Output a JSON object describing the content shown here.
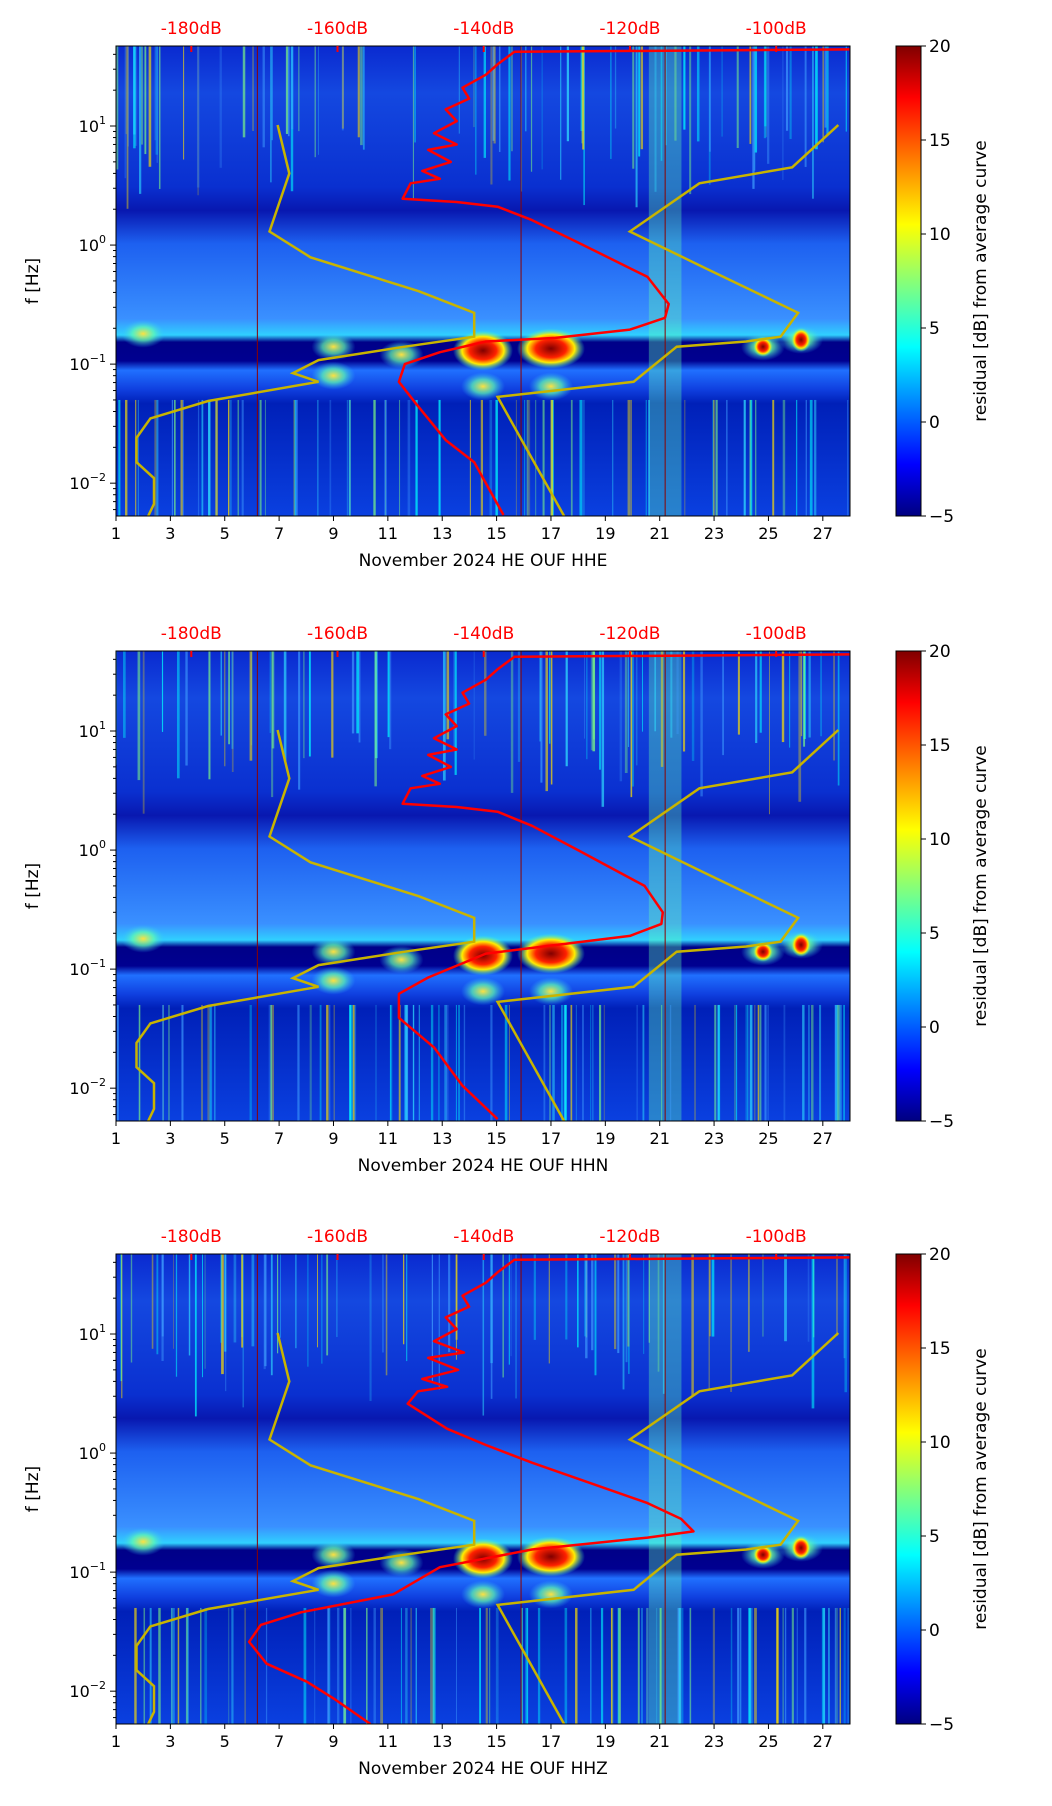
{
  "chart_data": [
    {
      "type": "heatmap",
      "xlabel": "November 2024 HE OUF  HHE",
      "ylabel": "f [Hz]",
      "x_ticks": [
        "1",
        "3",
        "5",
        "7",
        "9",
        "11",
        "13",
        "15",
        "17",
        "19",
        "21",
        "23",
        "25",
        "27"
      ],
      "xlim": [
        1,
        28
      ],
      "y_ticks": [
        {
          "value": 0.01,
          "base": "10",
          "exp": "−2"
        },
        {
          "value": 0.1,
          "base": "10",
          "exp": "−1"
        },
        {
          "value": 1,
          "base": "10",
          "exp": "0"
        },
        {
          "value": 10,
          "base": "10",
          "exp": "1"
        }
      ],
      "ylim": [
        0.0053,
        47
      ],
      "yscale": "log",
      "top_axis": {
        "ticks": [
          {
            "value": -180,
            "label": "-180dB"
          },
          {
            "value": -160,
            "label": "-160dB"
          },
          {
            "value": -140,
            "label": "-140dB"
          },
          {
            "value": -120,
            "label": "-120dB"
          },
          {
            "value": -100,
            "label": "-100dB"
          }
        ],
        "range": [
          -190.3,
          -89.9
        ],
        "color": "#ff0000"
      },
      "colorbar": {
        "label": "residual [dB] from average curve",
        "ticks": [
          "20",
          "15",
          "10",
          "5",
          "0",
          "−5"
        ],
        "range": [
          -5,
          20
        ],
        "colormap": "jet"
      },
      "red_curve_db_hz": [
        [
          -137.3,
          0.0054
        ],
        [
          -141.3,
          0.015
        ],
        [
          -145.2,
          0.023
        ],
        [
          -149.2,
          0.046
        ],
        [
          -151.6,
          0.071
        ],
        [
          -150.8,
          0.1
        ],
        [
          -146,
          0.126
        ],
        [
          -139.7,
          0.155
        ],
        [
          -130.2,
          0.166
        ],
        [
          -120,
          0.195
        ],
        [
          -115.2,
          0.245
        ],
        [
          -114.7,
          0.32
        ],
        [
          -117.6,
          0.54
        ],
        [
          -127.1,
          1.05
        ],
        [
          -133.4,
          1.62
        ],
        [
          -138.1,
          2.1
        ],
        [
          -143.7,
          2.3
        ],
        [
          -151.1,
          2.45
        ],
        [
          -150,
          3.3
        ],
        [
          -146,
          3.6
        ],
        [
          -148.4,
          4.2
        ],
        [
          -144.5,
          5.0
        ],
        [
          -147.6,
          6.3
        ],
        [
          -143.7,
          7.0
        ],
        [
          -146.8,
          8.7
        ],
        [
          -143.7,
          11
        ],
        [
          -145.2,
          13.8
        ],
        [
          -142,
          17
        ],
        [
          -142.9,
          21
        ],
        [
          -139.7,
          27
        ],
        [
          -138.1,
          33
        ],
        [
          -135.8,
          42
        ],
        [
          -89.9,
          44
        ]
      ]
    },
    {
      "type": "heatmap",
      "xlabel": "November 2024 HE OUF  HHN",
      "ylabel": "f [Hz]",
      "x_ticks": [
        "1",
        "3",
        "5",
        "7",
        "9",
        "11",
        "13",
        "15",
        "17",
        "19",
        "21",
        "23",
        "25",
        "27"
      ],
      "xlim": [
        1,
        28
      ],
      "y_ticks": [
        {
          "value": 0.01,
          "base": "10",
          "exp": "−2"
        },
        {
          "value": 0.1,
          "base": "10",
          "exp": "−1"
        },
        {
          "value": 1,
          "base": "10",
          "exp": "0"
        },
        {
          "value": 10,
          "base": "10",
          "exp": "1"
        }
      ],
      "ylim": [
        0.0053,
        47
      ],
      "yscale": "log",
      "top_axis": {
        "ticks": [
          {
            "value": -180,
            "label": "-180dB"
          },
          {
            "value": -160,
            "label": "-160dB"
          },
          {
            "value": -140,
            "label": "-140dB"
          },
          {
            "value": -120,
            "label": "-120dB"
          },
          {
            "value": -100,
            "label": "-100dB"
          }
        ],
        "range": [
          -190.3,
          -89.9
        ],
        "color": "#ff0000"
      },
      "colorbar": {
        "label": "residual [dB] from average curve",
        "ticks": [
          "20",
          "15",
          "10",
          "5",
          "0",
          "−5"
        ],
        "range": [
          -5,
          20
        ],
        "colormap": "jet"
      },
      "red_curve_db_hz": [
        [
          -138.1,
          0.0055
        ],
        [
          -142.9,
          0.0105
        ],
        [
          -146.8,
          0.022
        ],
        [
          -151.6,
          0.039
        ],
        [
          -151.6,
          0.062
        ],
        [
          -147.6,
          0.085
        ],
        [
          -139.7,
          0.135
        ],
        [
          -120,
          0.19
        ],
        [
          -115.7,
          0.24
        ],
        [
          -115.5,
          0.3
        ],
        [
          -118,
          0.5
        ],
        [
          -127.1,
          1.0
        ],
        [
          -133.4,
          1.6
        ],
        [
          -138.1,
          2.1
        ],
        [
          -143.7,
          2.3
        ],
        [
          -151.1,
          2.45
        ],
        [
          -150,
          3.3
        ],
        [
          -146,
          3.6
        ],
        [
          -148.4,
          4.2
        ],
        [
          -144.5,
          5.0
        ],
        [
          -147.6,
          6.3
        ],
        [
          -143.7,
          7.0
        ],
        [
          -146.8,
          8.7
        ],
        [
          -143.7,
          11
        ],
        [
          -145.2,
          13.8
        ],
        [
          -142,
          17
        ],
        [
          -142.9,
          21
        ],
        [
          -139.7,
          27
        ],
        [
          -138.1,
          33
        ],
        [
          -135.8,
          42
        ],
        [
          -89.9,
          44
        ]
      ]
    },
    {
      "type": "heatmap",
      "xlabel": "November 2024 HE OUF  HHZ",
      "ylabel": "f [Hz]",
      "x_ticks": [
        "1",
        "3",
        "5",
        "7",
        "9",
        "11",
        "13",
        "15",
        "17",
        "19",
        "21",
        "23",
        "25",
        "27"
      ],
      "xlim": [
        1,
        28
      ],
      "y_ticks": [
        {
          "value": 0.01,
          "base": "10",
          "exp": "−2"
        },
        {
          "value": 0.1,
          "base": "10",
          "exp": "−1"
        },
        {
          "value": 1,
          "base": "10",
          "exp": "0"
        },
        {
          "value": 10,
          "base": "10",
          "exp": "1"
        }
      ],
      "ylim": [
        0.0053,
        47
      ],
      "yscale": "log",
      "top_axis": {
        "ticks": [
          {
            "value": -180,
            "label": "-180dB"
          },
          {
            "value": -160,
            "label": "-160dB"
          },
          {
            "value": -140,
            "label": "-140dB"
          },
          {
            "value": -120,
            "label": "-120dB"
          },
          {
            "value": -100,
            "label": "-100dB"
          }
        ],
        "range": [
          -190.3,
          -89.9
        ],
        "color": "#ff0000"
      },
      "colorbar": {
        "label": "residual [dB] from average curve",
        "ticks": [
          "20",
          "15",
          "10",
          "5",
          "0",
          "−5"
        ],
        "range": [
          -5,
          20
        ],
        "colormap": "jet"
      },
      "red_curve_db_hz": [
        [
          -155.5,
          0.0053
        ],
        [
          -160.3,
          0.0085
        ],
        [
          -164.2,
          0.012
        ],
        [
          -169.7,
          0.017
        ],
        [
          -172.1,
          0.026
        ],
        [
          -170.5,
          0.036
        ],
        [
          -165,
          0.046
        ],
        [
          -152.4,
          0.065
        ],
        [
          -146,
          0.11
        ],
        [
          -133.4,
          0.155
        ],
        [
          -117.6,
          0.195
        ],
        [
          -111.3,
          0.22
        ],
        [
          -113,
          0.28
        ],
        [
          -117.6,
          0.38
        ],
        [
          -133.4,
          0.83
        ],
        [
          -139.7,
          1.17
        ],
        [
          -145,
          1.6
        ],
        [
          -150.4,
          2.6
        ],
        [
          -149,
          3.3
        ],
        [
          -145,
          3.6
        ],
        [
          -148.4,
          4.2
        ],
        [
          -143.5,
          5.0
        ],
        [
          -147.6,
          6.3
        ],
        [
          -142.7,
          7.0
        ],
        [
          -146.8,
          8.7
        ],
        [
          -143.7,
          11
        ],
        [
          -145.2,
          13.8
        ],
        [
          -142,
          17
        ],
        [
          -142.9,
          21
        ],
        [
          -139.7,
          27
        ],
        [
          -138.1,
          33
        ],
        [
          -135.8,
          42
        ],
        [
          -89.9,
          44
        ]
      ]
    }
  ],
  "noise_models": {
    "low_noise_model_db_hz": [
      [
        -168.2,
        10.2
      ],
      [
        -166.6,
        4.0
      ],
      [
        -169.3,
        1.3
      ],
      [
        -163.7,
        0.79
      ],
      [
        -148.9,
        0.41
      ],
      [
        -141.3,
        0.27
      ],
      [
        -141.3,
        0.17
      ],
      [
        -150.8,
        0.14
      ],
      [
        -162.6,
        0.108
      ],
      [
        -166.1,
        0.084
      ],
      [
        -162.6,
        0.071
      ],
      [
        -177.7,
        0.049
      ],
      [
        -185.6,
        0.035
      ],
      [
        -187.5,
        0.024
      ],
      [
        -187.5,
        0.015
      ],
      [
        -185.1,
        0.011
      ],
      [
        -185.1,
        0.0067
      ],
      [
        -185.9,
        0.0053
      ]
    ],
    "high_noise_model_db_hz": [
      [
        -91.5,
        10.2
      ],
      [
        -97.8,
        4.5
      ],
      [
        -110.5,
        3.3
      ],
      [
        -120,
        1.3
      ],
      [
        -109.7,
        0.64
      ],
      [
        -97,
        0.27
      ],
      [
        -99.4,
        0.17
      ],
      [
        -104.1,
        0.155
      ],
      [
        -113.6,
        0.14
      ],
      [
        -119.5,
        0.071
      ],
      [
        -138.1,
        0.053
      ],
      [
        -129,
        0.0053
      ]
    ],
    "color": "#c8b400"
  },
  "colors": {
    "psd_curve": "#ff0000",
    "marker_lines": "#8b0000"
  }
}
